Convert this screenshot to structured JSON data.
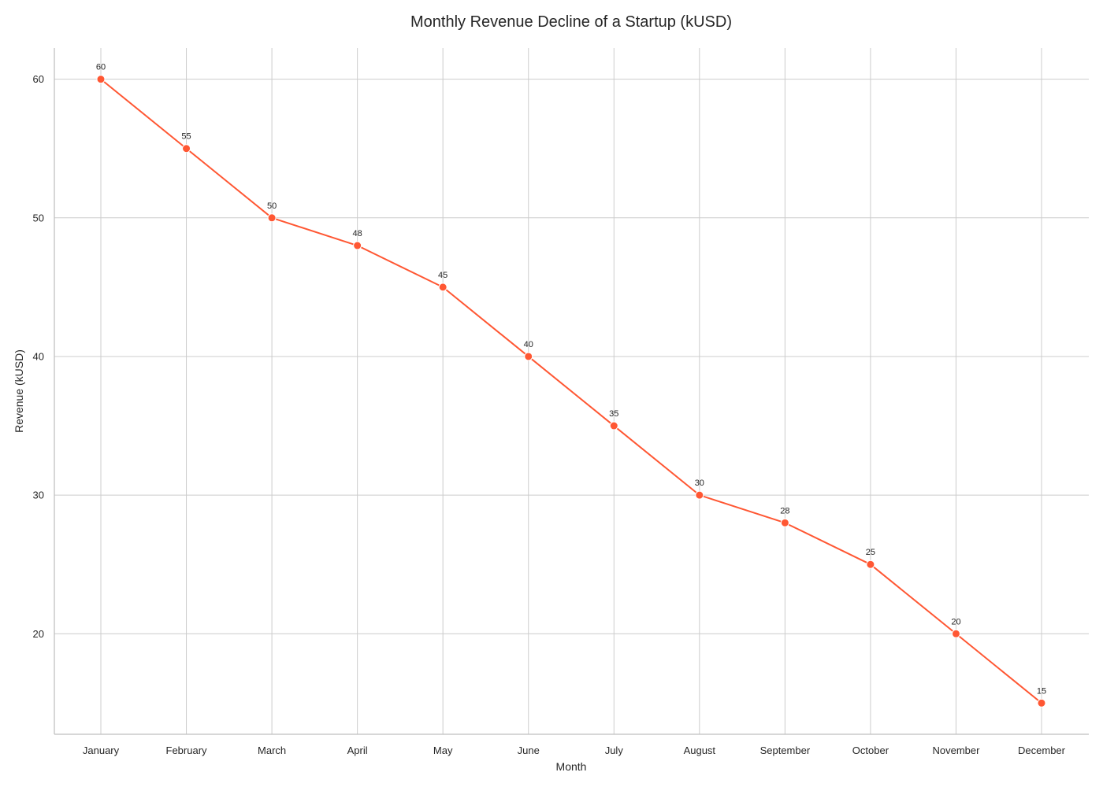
{
  "chart_data": {
    "type": "line",
    "title": "Monthly Revenue Decline of a Startup (kUSD)",
    "xlabel": "Month",
    "ylabel": "Revenue (kUSD)",
    "categories": [
      "January",
      "February",
      "March",
      "April",
      "May",
      "June",
      "July",
      "August",
      "September",
      "October",
      "November",
      "December"
    ],
    "series": [
      {
        "values": [
          60,
          55,
          50,
          48,
          45,
          40,
          35,
          30,
          28,
          25,
          20,
          15
        ],
        "color": "#ff5733"
      }
    ],
    "data_labels": [
      "60",
      "55",
      "50",
      "48",
      "45",
      "40",
      "35",
      "30",
      "28",
      "25",
      "20",
      "15"
    ],
    "ylim": [
      12.75,
      62.25
    ],
    "yticks": [
      20,
      30,
      40,
      50,
      60
    ],
    "ytick_labels": [
      "20",
      "30",
      "40",
      "50",
      "60"
    ],
    "grid": true,
    "legend": false,
    "marker": "circle"
  }
}
